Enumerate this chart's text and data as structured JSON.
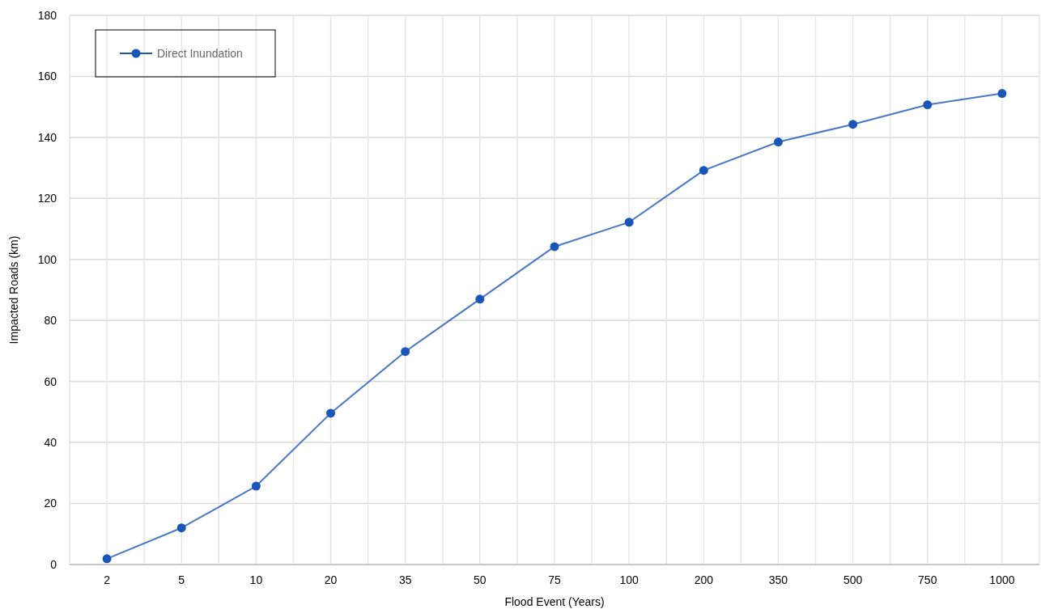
{
  "chart_data": {
    "type": "line",
    "xlabel": "Flood Event (Years)",
    "ylabel": "Impacted Roads (km)",
    "categories": [
      "2",
      "5",
      "10",
      "20",
      "35",
      "50",
      "75",
      "100",
      "200",
      "350",
      "500",
      "750",
      "1000"
    ],
    "series": [
      {
        "name": "Direct Inundation",
        "color": "#1a56b8",
        "values": [
          1.9,
          12,
          25.7,
          49.6,
          69.8,
          87,
          104.2,
          112.2,
          129.2,
          138.5,
          144.3,
          150.7,
          154.4
        ]
      }
    ],
    "ylim": [
      0,
      180
    ],
    "yticks": [
      0,
      20,
      40,
      60,
      80,
      100,
      120,
      140,
      160,
      180
    ],
    "grid": true,
    "legend": "top left",
    "marker": "circle",
    "line_style": "solid"
  }
}
